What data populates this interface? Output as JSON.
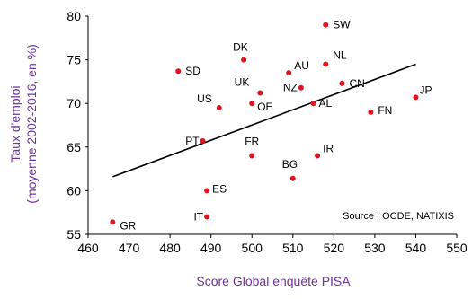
{
  "chart_data": {
    "type": "scatter",
    "xlabel": "Score Global enquête PISA",
    "ylabel_line1": "Taux d'emploi",
    "ylabel_line2": "(moyenne 2002-2016, en %)",
    "annotation": "Source : OCDE, NATIXIS",
    "xlim": [
      460,
      550
    ],
    "ylim": [
      55,
      80
    ],
    "xticks": [
      460,
      470,
      480,
      490,
      500,
      510,
      520,
      530,
      540,
      550
    ],
    "yticks": [
      55,
      60,
      65,
      70,
      75,
      80
    ],
    "grid": false,
    "colors": {
      "point": "#e0141e",
      "axis_title": "#7030a0",
      "text": "#000000",
      "trend": "#000000"
    },
    "trendline": {
      "x": [
        466,
        540
      ],
      "y": [
        61.6,
        74.5
      ]
    },
    "points": [
      {
        "label": "SW",
        "x": 518,
        "y": 79
      },
      {
        "label": "DK",
        "x": 498,
        "y": 75
      },
      {
        "label": "NL",
        "x": 518,
        "y": 74.5
      },
      {
        "label": "SD",
        "x": 482,
        "y": 73.7
      },
      {
        "label": "AU",
        "x": 509,
        "y": 73.5
      },
      {
        "label": "UK",
        "x": 502,
        "y": 71.2
      },
      {
        "label": "NZ",
        "x": 512,
        "y": 71.8
      },
      {
        "label": "CN",
        "x": 522,
        "y": 72.3
      },
      {
        "label": "JP",
        "x": 540,
        "y": 70.7
      },
      {
        "label": "US",
        "x": 492,
        "y": 69.5
      },
      {
        "label": "OE",
        "x": 500,
        "y": 70
      },
      {
        "label": "AL",
        "x": 515,
        "y": 70
      },
      {
        "label": "FN",
        "x": 529,
        "y": 69
      },
      {
        "label": "PT",
        "x": 488,
        "y": 65.7
      },
      {
        "label": "FR",
        "x": 500,
        "y": 64
      },
      {
        "label": "IR",
        "x": 516,
        "y": 64
      },
      {
        "label": "BG",
        "x": 510,
        "y": 61.4
      },
      {
        "label": "ES",
        "x": 489,
        "y": 60
      },
      {
        "label": "IT",
        "x": 489,
        "y": 57
      },
      {
        "label": "GR",
        "x": 466,
        "y": 56.4
      }
    ]
  }
}
